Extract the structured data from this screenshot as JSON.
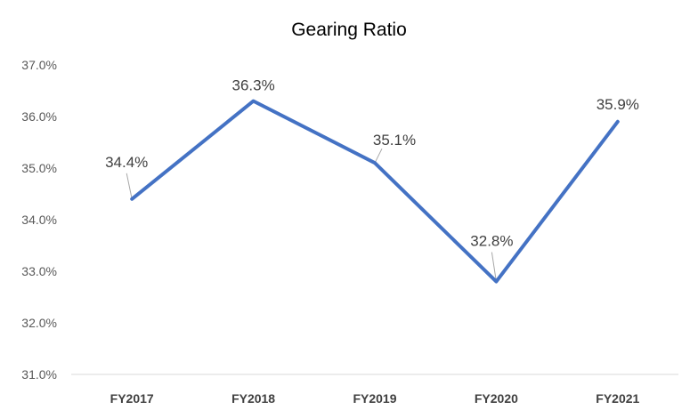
{
  "chart_data": {
    "type": "line",
    "title": "Gearing Ratio",
    "xlabel": "",
    "ylabel": "",
    "categories": [
      "FY2017",
      "FY2018",
      "FY2019",
      "FY2020",
      "FY2021"
    ],
    "series": [
      {
        "values": [
          34.4,
          36.3,
          35.1,
          32.8,
          35.9
        ]
      }
    ],
    "data_labels": [
      "34.4%",
      "36.3%",
      "35.1%",
      "32.8%",
      "35.9%"
    ],
    "ylim": [
      31.0,
      37.0
    ],
    "yticks": [
      31.0,
      32.0,
      33.0,
      34.0,
      35.0,
      36.0,
      37.0
    ],
    "ytick_labels": [
      "31.0%",
      "32.0%",
      "33.0%",
      "34.0%",
      "35.0%",
      "36.0%",
      "37.0%"
    ],
    "grid": false,
    "legend": "none",
    "line_color": "#4472C4",
    "axis_color": "#D9D9D9",
    "leader_color": "#A6A6A6"
  }
}
